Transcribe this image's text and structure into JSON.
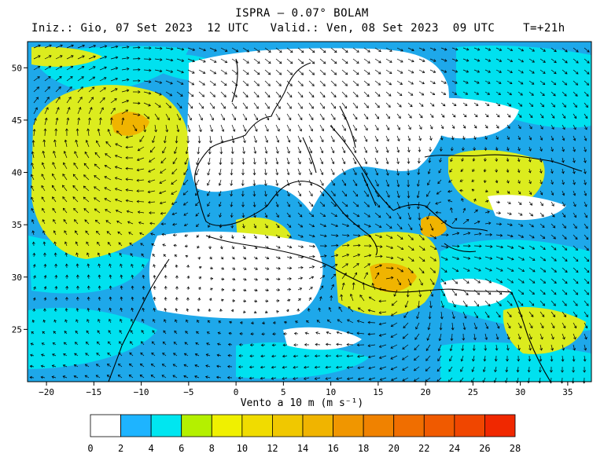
{
  "header": {
    "title": "ISPRA — 0.07° BOLAM",
    "init": "Iniz.: Gio, 07 Set 2023",
    "init_hour": "12 UTC",
    "valid": "Valid.: Ven, 08 Set 2023",
    "valid_hour": "09 UTC",
    "lead": "T=+21h"
  },
  "axes": {
    "x_label": "Vento a 10 m (m s⁻¹)",
    "x_ticks": [
      "−20",
      "−15",
      "−10",
      "−5",
      "0",
      "5",
      "10",
      "15",
      "20",
      "25",
      "30",
      "35"
    ],
    "y_ticks": [
      "50",
      "45",
      "40",
      "35",
      "30",
      "25"
    ],
    "lon_range": [
      -22,
      37.5
    ],
    "lat_range": [
      20,
      52.5
    ]
  },
  "colorbar": {
    "labels": [
      "0",
      "2",
      "4",
      "6",
      "8",
      "10",
      "12",
      "14",
      "16",
      "18",
      "20",
      "22",
      "24",
      "26",
      "28"
    ],
    "colors": [
      "#ffffff",
      "#1eb4ff",
      "#00e6f0",
      "#b4f000",
      "#f0f000",
      "#f0dc00",
      "#f0c800",
      "#f0b400",
      "#f09600",
      "#f08200",
      "#f06e00",
      "#f05a00",
      "#f04600",
      "#f02800"
    ]
  },
  "map_colors": {
    "sea": "#1ea8ea",
    "light": "#00e1ef",
    "yellow": "#dcec1e",
    "orange": "#f0b400",
    "land_white": "#ffffff",
    "coast": "#000000"
  }
}
